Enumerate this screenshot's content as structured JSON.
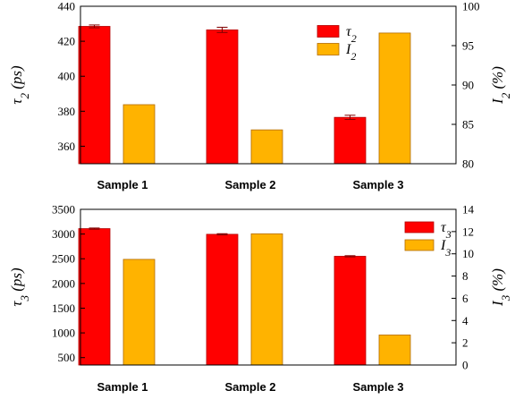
{
  "chart_data": [
    {
      "type": "bar",
      "categories": [
        "Sample 1",
        "Sample 2",
        "Sample 3"
      ],
      "series": [
        {
          "name": "τ2",
          "axis": "left",
          "color": "#ff0000",
          "values": [
            428.5,
            426.5,
            376.5
          ],
          "errors": [
            0.8,
            1.5,
            1.2
          ]
        },
        {
          "name": "I2",
          "axis": "right",
          "color": "#ffb300",
          "values": [
            87.5,
            84.3,
            96.6
          ]
        }
      ],
      "ylabel_left": "τ2 (ps)",
      "ylabel_right": "I2 (%)",
      "ylim_left": [
        350,
        440
      ],
      "ylim_right": [
        80,
        100
      ],
      "yticks_left": [
        "360",
        "380",
        "400",
        "420",
        "440"
      ],
      "yticks_right": [
        "80",
        "85",
        "90",
        "95",
        "100"
      ],
      "legend_position": "top-right"
    },
    {
      "type": "bar",
      "categories": [
        "Sample 1",
        "Sample 2",
        "Sample 3"
      ],
      "series": [
        {
          "name": "τ3",
          "axis": "left",
          "color": "#ff0000",
          "values": [
            3110,
            2995,
            2550
          ],
          "errors": [
            12,
            12,
            12
          ]
        },
        {
          "name": "I3",
          "axis": "right",
          "color": "#ffb300",
          "values": [
            9.5,
            11.8,
            2.7
          ]
        }
      ],
      "ylabel_left": "τ3 (ps)",
      "ylabel_right": "I3 (%)",
      "ylim_left": [
        350,
        3500
      ],
      "ylim_right": [
        0,
        14
      ],
      "yticks_left": [
        "500",
        "1000",
        "1500",
        "2000",
        "2500",
        "3000",
        "3500"
      ],
      "yticks_right": [
        "0",
        "2",
        "4",
        "6",
        "8",
        "10",
        "12",
        "14"
      ],
      "legend_position": "top-right"
    }
  ]
}
